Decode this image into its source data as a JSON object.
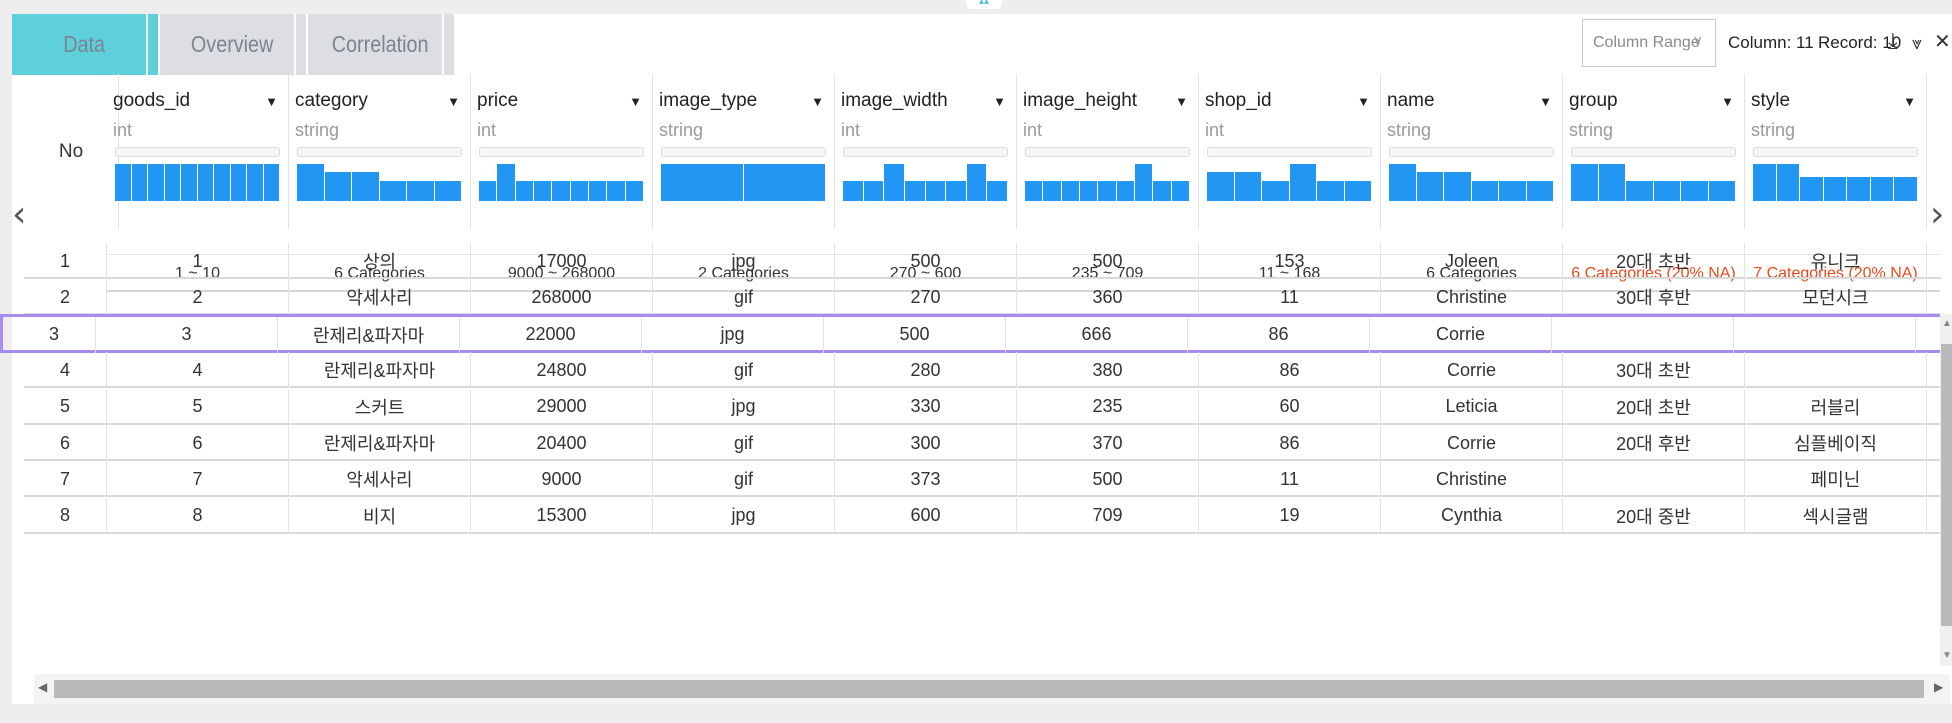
{
  "tabs": [
    {
      "label": "Data",
      "active": true
    },
    {
      "label": "Overview",
      "active": false
    },
    {
      "label": "Correlation",
      "active": false
    }
  ],
  "toolbar": {
    "column_range": "Column Range",
    "column_count": "Column: 11",
    "record_count": "Record: 10",
    "icons": [
      "download-icon",
      "expand-icon",
      "close-icon"
    ]
  },
  "no_header": "No",
  "columns": [
    {
      "name": "goods_id",
      "type": "int",
      "summary": "1 ~ 10",
      "na": false,
      "hist": [
        1,
        1,
        1,
        1,
        1,
        1,
        1,
        1,
        1,
        1
      ]
    },
    {
      "name": "category",
      "type": "string",
      "summary": "6 Categories",
      "na": false,
      "hist": [
        3,
        2,
        2,
        1,
        1,
        1
      ]
    },
    {
      "name": "price",
      "type": "int",
      "summary": "9000 ~ 268000",
      "na": false,
      "hist": [
        1,
        3,
        1,
        1,
        1,
        1,
        1,
        1,
        1
      ]
    },
    {
      "name": "image_type",
      "type": "string",
      "summary": "2 Categories",
      "na": false,
      "hist": [
        5,
        5
      ]
    },
    {
      "name": "image_width",
      "type": "int",
      "summary": "270 ~ 600",
      "na": false,
      "hist": [
        1,
        1,
        3,
        1,
        1,
        1,
        3,
        1
      ]
    },
    {
      "name": "image_height",
      "type": "int",
      "summary": "235 ~ 709",
      "na": false,
      "hist": [
        1,
        1,
        1,
        1,
        1,
        1,
        3,
        1,
        1
      ]
    },
    {
      "name": "shop_id",
      "type": "int",
      "summary": "11 ~ 168",
      "na": false,
      "hist": [
        2,
        2,
        1,
        3,
        1,
        1
      ]
    },
    {
      "name": "name",
      "type": "string",
      "summary": "6 Categories",
      "na": false,
      "hist": [
        3,
        2,
        2,
        1,
        1,
        1
      ]
    },
    {
      "name": "group",
      "type": "string",
      "summary": "6 Categories (20% NA)",
      "na": true,
      "hist": [
        3,
        3,
        1,
        1,
        1,
        1
      ]
    },
    {
      "name": "style",
      "type": "string",
      "summary": "7 Categories (20% NA)",
      "na": true,
      "hist": [
        2,
        2,
        1,
        1,
        1,
        1,
        1
      ]
    }
  ],
  "rows": [
    {
      "no": "1",
      "cells": [
        "1",
        "상의",
        "17000",
        "jpg",
        "500",
        "500",
        "153",
        "Joleen",
        "20대 초반",
        "유니크"
      ]
    },
    {
      "no": "2",
      "cells": [
        "2",
        "악세사리",
        "268000",
        "gif",
        "270",
        "360",
        "11",
        "Christine",
        "30대 후반",
        "모던시크"
      ]
    },
    {
      "no": "3",
      "cells": [
        "3",
        "란제리&파자마",
        "22000",
        "jpg",
        "500",
        "666",
        "86",
        "Corrie",
        "",
        ""
      ],
      "selected": true
    },
    {
      "no": "4",
      "cells": [
        "4",
        "란제리&파자마",
        "24800",
        "gif",
        "280",
        "380",
        "86",
        "Corrie",
        "30대 초반",
        ""
      ]
    },
    {
      "no": "5",
      "cells": [
        "5",
        "스커트",
        "29000",
        "jpg",
        "330",
        "235",
        "60",
        "Leticia",
        "20대 초반",
        "러블리"
      ]
    },
    {
      "no": "6",
      "cells": [
        "6",
        "란제리&파자마",
        "20400",
        "gif",
        "300",
        "370",
        "86",
        "Corrie",
        "20대 후반",
        "심플베이직"
      ]
    },
    {
      "no": "7",
      "cells": [
        "7",
        "악세사리",
        "9000",
        "gif",
        "373",
        "500",
        "11",
        "Christine",
        "",
        "페미닌"
      ]
    },
    {
      "no": "8",
      "cells": [
        "8",
        "비지",
        "15300",
        "jpg",
        "600",
        "709",
        "19",
        "Cynthia",
        "20대 중반",
        "섹시글램"
      ]
    }
  ],
  "colors": {
    "accent": "#5dd0dc",
    "bar": "#2196f3",
    "na": "#e8491d",
    "selected": "#a78cf0"
  }
}
